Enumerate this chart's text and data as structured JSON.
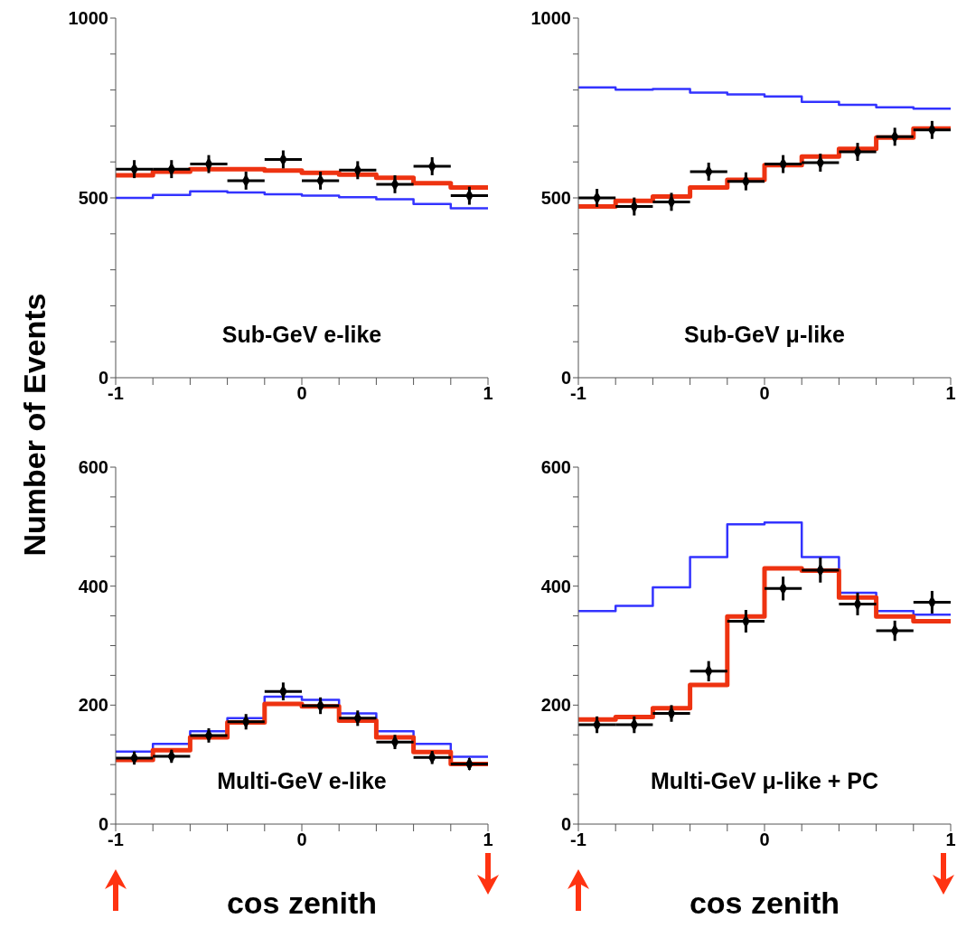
{
  "chart_data": [
    {
      "type": "step",
      "annotations": [
        "Sub-GeV e-like"
      ],
      "ylabel": "Number of Events",
      "x": [
        -0.9,
        -0.7,
        -0.5,
        -0.3,
        -0.1,
        0.1,
        0.3,
        0.5,
        0.7,
        0.9
      ],
      "xlim": [
        -1,
        1
      ],
      "ylim": [
        0,
        1000
      ],
      "xticks": [
        -1,
        {
          "value": -0.8,
          "label": null
        },
        {
          "value": -0.6,
          "label": null
        },
        {
          "value": -0.4,
          "label": null
        },
        {
          "value": -0.2,
          "label": null
        },
        0,
        {
          "value": 0.2,
          "label": null
        },
        {
          "value": 0.4,
          "label": null
        },
        {
          "value": 0.6,
          "label": null
        },
        {
          "value": 0.8,
          "label": null
        },
        1
      ],
      "yticks": [
        0,
        {
          "value": 100,
          "label": null
        },
        {
          "value": 200,
          "label": null
        },
        {
          "value": 300,
          "label": null
        },
        {
          "value": 400,
          "label": null
        },
        500,
        {
          "value": 600,
          "label": null
        },
        {
          "value": 700,
          "label": null
        },
        {
          "value": 800,
          "label": null
        },
        {
          "value": 900,
          "label": null
        },
        1000
      ],
      "grid": false,
      "legend": false,
      "series": [
        {
          "type": "step",
          "color": "#3333ff",
          "x": [
            -1,
            -0.8,
            -0.6,
            -0.4,
            -0.2,
            0,
            0.2,
            0.4,
            0.6,
            0.8,
            1
          ],
          "values": [
            500,
            508,
            518,
            515,
            510,
            506,
            502,
            496,
            483,
            471,
            471
          ]
        },
        {
          "type": "step",
          "color": "#ee3311",
          "x": [
            -1,
            -0.8,
            -0.6,
            -0.4,
            -0.2,
            0,
            0.2,
            0.4,
            0.6,
            0.8,
            1
          ],
          "values": [
            563,
            573,
            580,
            580,
            576,
            570,
            565,
            556,
            541,
            529,
            529
          ]
        },
        {
          "type": "scatter",
          "color": "#000000",
          "marker": "diamond",
          "values": [
            580,
            580,
            594,
            548,
            607,
            548,
            577,
            538,
            588,
            506
          ],
          "errors": [
            25,
            25,
            25,
            25,
            25,
            25,
            25,
            25,
            25,
            25
          ],
          "xerrors": [
            0.1,
            0.1,
            0.1,
            0.1,
            0.1,
            0.1,
            0.1,
            0.1,
            0.1,
            0.1
          ]
        }
      ]
    },
    {
      "type": "step",
      "annotations": [
        "Sub-GeV μ-like"
      ],
      "x": [
        -0.9,
        -0.7,
        -0.5,
        -0.3,
        -0.1,
        0.1,
        0.3,
        0.5,
        0.7,
        0.9
      ],
      "xlim": [
        -1,
        1
      ],
      "ylim": [
        0,
        1000
      ],
      "xticks": [
        -1,
        {
          "value": -0.8,
          "label": null
        },
        {
          "value": -0.6,
          "label": null
        },
        {
          "value": -0.4,
          "label": null
        },
        {
          "value": -0.2,
          "label": null
        },
        0,
        {
          "value": 0.2,
          "label": null
        },
        {
          "value": 0.4,
          "label": null
        },
        {
          "value": 0.6,
          "label": null
        },
        {
          "value": 0.8,
          "label": null
        },
        1
      ],
      "yticks": [
        0,
        {
          "value": 100,
          "label": null
        },
        {
          "value": 200,
          "label": null
        },
        {
          "value": 300,
          "label": null
        },
        {
          "value": 400,
          "label": null
        },
        500,
        {
          "value": 600,
          "label": null
        },
        {
          "value": 700,
          "label": null
        },
        {
          "value": 800,
          "label": null
        },
        {
          "value": 900,
          "label": null
        },
        1000
      ],
      "grid": false,
      "legend": false,
      "series": [
        {
          "type": "step",
          "color": "#3333ff",
          "x": [
            -1,
            -0.8,
            -0.6,
            -0.4,
            -0.2,
            0,
            0.2,
            0.4,
            0.6,
            0.8,
            1
          ],
          "values": [
            807,
            801,
            803,
            793,
            788,
            782,
            767,
            759,
            752,
            748,
            748
          ]
        },
        {
          "type": "step",
          "color": "#ee3311",
          "x": [
            -1,
            -0.8,
            -0.6,
            -0.4,
            -0.2,
            0,
            0.2,
            0.4,
            0.6,
            0.8,
            1
          ],
          "values": [
            476,
            492,
            504,
            529,
            550,
            591,
            615,
            636,
            668,
            693,
            693
          ]
        },
        {
          "type": "scatter",
          "color": "#000000",
          "marker": "diamond",
          "values": [
            500,
            476,
            489,
            573,
            546,
            594,
            598,
            628,
            670,
            689
          ],
          "errors": [
            25,
            25,
            25,
            25,
            25,
            25,
            25,
            25,
            25,
            25
          ],
          "xerrors": [
            0.1,
            0.1,
            0.1,
            0.1,
            0.1,
            0.1,
            0.1,
            0.1,
            0.1,
            0.1
          ]
        }
      ]
    },
    {
      "type": "step",
      "annotations": [
        "Multi-GeV e-like"
      ],
      "xlabel": "cos zenith",
      "x": [
        -0.9,
        -0.7,
        -0.5,
        -0.3,
        -0.1,
        0.1,
        0.3,
        0.5,
        0.7,
        0.9
      ],
      "xlim": [
        -1,
        1
      ],
      "ylim": [
        0,
        600
      ],
      "xticks": [
        -1,
        {
          "value": -0.8,
          "label": null
        },
        {
          "value": -0.6,
          "label": null
        },
        {
          "value": -0.4,
          "label": null
        },
        {
          "value": -0.2,
          "label": null
        },
        0,
        {
          "value": 0.2,
          "label": null
        },
        {
          "value": 0.4,
          "label": null
        },
        {
          "value": 0.6,
          "label": null
        },
        {
          "value": 0.8,
          "label": null
        },
        1
      ],
      "yticks": [
        0,
        {
          "value": 50,
          "label": null
        },
        {
          "value": 100,
          "label": null
        },
        {
          "value": 150,
          "label": null
        },
        200,
        {
          "value": 250,
          "label": null
        },
        {
          "value": 300,
          "label": null
        },
        {
          "value": 350,
          "label": null
        },
        400,
        {
          "value": 450,
          "label": null
        },
        {
          "value": 500,
          "label": null
        },
        {
          "value": 550,
          "label": null
        },
        600
      ],
      "grid": false,
      "legend": false,
      "series": [
        {
          "type": "step",
          "color": "#3333ff",
          "x": [
            -1,
            -0.8,
            -0.6,
            -0.4,
            -0.2,
            0,
            0.2,
            0.4,
            0.6,
            0.8,
            1
          ],
          "values": [
            122,
            135,
            156,
            178,
            214,
            209,
            186,
            156,
            135,
            113,
            113
          ]
        },
        {
          "type": "step",
          "color": "#ee3311",
          "x": [
            -1,
            -0.8,
            -0.6,
            -0.4,
            -0.2,
            0,
            0.2,
            0.4,
            0.6,
            0.8,
            1
          ],
          "values": [
            108,
            124,
            146,
            171,
            202,
            198,
            174,
            146,
            121,
            101,
            101
          ]
        },
        {
          "type": "scatter",
          "color": "#000000",
          "marker": "diamond",
          "values": [
            111,
            114,
            149,
            172,
            223,
            199,
            178,
            138,
            112,
            101
          ],
          "errors": [
            11,
            11,
            12,
            13,
            15,
            14,
            13,
            12,
            11,
            10
          ],
          "xerrors": [
            0.1,
            0.1,
            0.1,
            0.1,
            0.1,
            0.1,
            0.1,
            0.1,
            0.1,
            0.1
          ]
        }
      ]
    },
    {
      "type": "step",
      "annotations": [
        "Multi-GeV μ-like + PC"
      ],
      "xlabel": "cos zenith",
      "x": [
        -0.9,
        -0.7,
        -0.5,
        -0.3,
        -0.1,
        0.1,
        0.3,
        0.5,
        0.7,
        0.9
      ],
      "xlim": [
        -1,
        1
      ],
      "ylim": [
        0,
        600
      ],
      "xticks": [
        -1,
        {
          "value": -0.8,
          "label": null
        },
        {
          "value": -0.6,
          "label": null
        },
        {
          "value": -0.4,
          "label": null
        },
        {
          "value": -0.2,
          "label": null
        },
        0,
        {
          "value": 0.2,
          "label": null
        },
        {
          "value": 0.4,
          "label": null
        },
        {
          "value": 0.6,
          "label": null
        },
        {
          "value": 0.8,
          "label": null
        },
        1
      ],
      "yticks": [
        0,
        {
          "value": 50,
          "label": null
        },
        {
          "value": 100,
          "label": null
        },
        {
          "value": 150,
          "label": null
        },
        200,
        {
          "value": 250,
          "label": null
        },
        {
          "value": 300,
          "label": null
        },
        {
          "value": 350,
          "label": null
        },
        400,
        {
          "value": 450,
          "label": null
        },
        {
          "value": 500,
          "label": null
        },
        {
          "value": 550,
          "label": null
        },
        600
      ],
      "grid": false,
      "legend": false,
      "series": [
        {
          "type": "step",
          "color": "#3333ff",
          "x": [
            -1,
            -0.8,
            -0.6,
            -0.4,
            -0.2,
            0,
            0.2,
            0.4,
            0.6,
            0.8,
            1
          ],
          "values": [
            358,
            367,
            398,
            449,
            504,
            507,
            449,
            389,
            358,
            352,
            352
          ]
        },
        {
          "type": "step",
          "color": "#ee3311",
          "x": [
            -1,
            -0.8,
            -0.6,
            -0.4,
            -0.2,
            0,
            0.2,
            0.4,
            0.6,
            0.8,
            1
          ],
          "values": [
            176,
            180,
            195,
            234,
            349,
            430,
            426,
            381,
            349,
            341,
            341
          ]
        },
        {
          "type": "scatter",
          "color": "#000000",
          "marker": "diamond",
          "values": [
            167,
            167,
            186,
            257,
            341,
            396,
            427,
            370,
            325,
            373
          ],
          "errors": [
            14,
            14,
            14,
            17,
            19,
            20,
            21,
            19,
            17,
            19
          ],
          "xerrors": [
            0.1,
            0.1,
            0.1,
            0.1,
            0.1,
            0.1,
            0.1,
            0.1,
            0.1,
            0.1
          ]
        }
      ]
    }
  ]
}
